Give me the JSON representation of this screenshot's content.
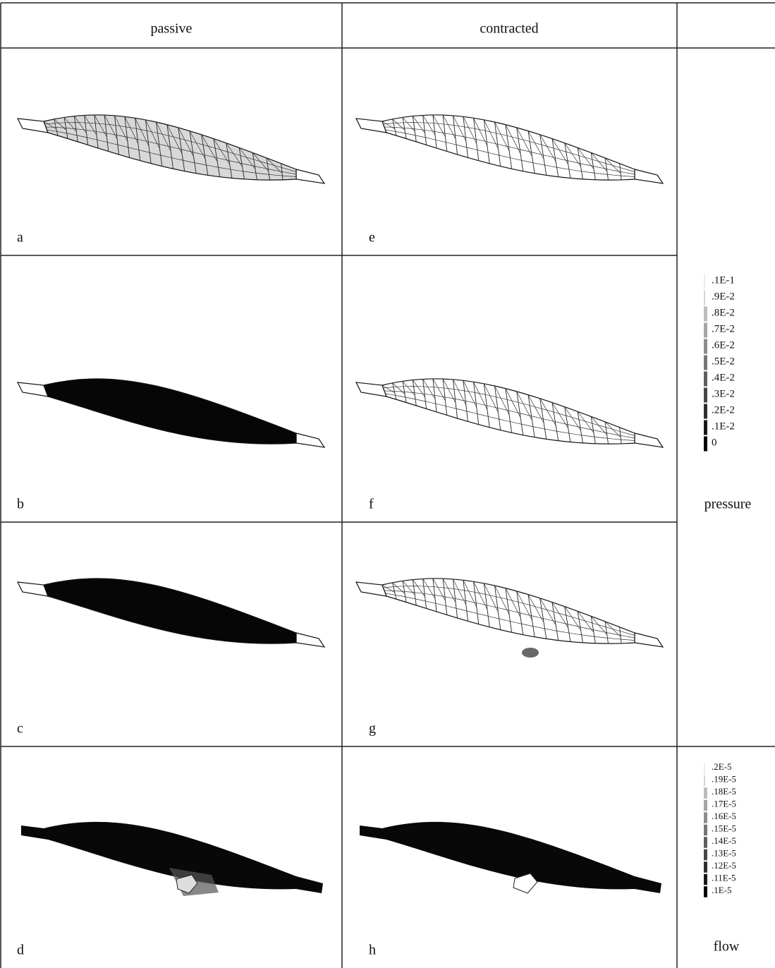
{
  "header": {
    "columns": [
      "passive",
      "contracted"
    ]
  },
  "panels": [
    [
      "a",
      "e"
    ],
    [
      "b",
      "f"
    ],
    [
      "c",
      "g"
    ],
    [
      "d",
      "h"
    ]
  ],
  "legends": [
    {
      "title": "pressure",
      "labels": [
        ".1E-1",
        ".9E-2",
        ".8E-2",
        ".7E-2",
        ".6E-2",
        ".5E-2",
        ".4E-2",
        ".3E-2",
        ".2E-2",
        ".1E-2",
        "0"
      ]
    },
    {
      "title": "flow",
      "labels": [
        ".2E-5",
        ".19E-5",
        ".18E-5",
        ".17E-5",
        ".16E-5",
        ".15E-5",
        ".14E-5",
        ".13E-5",
        ".12E-5",
        ".11E-5",
        ".1E-5"
      ]
    }
  ]
}
